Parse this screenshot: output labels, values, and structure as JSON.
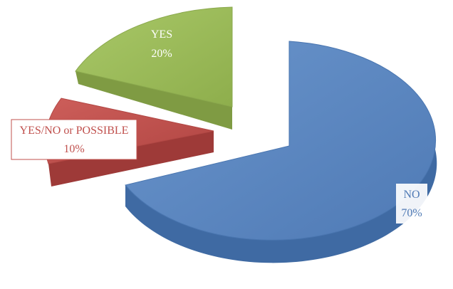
{
  "chart_data": {
    "type": "pie",
    "style": "3d-exploded",
    "slices": [
      {
        "label": "NO",
        "percent_label": "70%",
        "value": 70,
        "color": "#5b86bf"
      },
      {
        "label": "YES/NO or POSSIBLE",
        "percent_label": "10%",
        "value": 10,
        "color": "#c0504d"
      },
      {
        "label": "YES",
        "percent_label": "20%",
        "value": 20,
        "color": "#9bbb59"
      }
    ]
  }
}
